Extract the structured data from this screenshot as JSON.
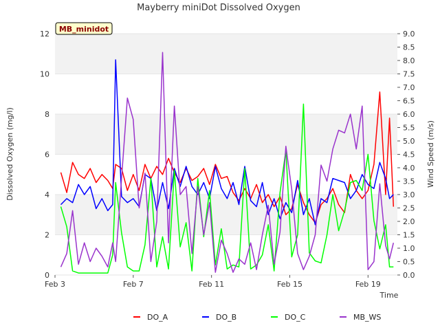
{
  "chart_data": {
    "type": "line",
    "title": "Mayberry miniDot Dissolved Oxygen",
    "badge": "MB_minidot",
    "xlabel": "Time",
    "ylabel": "Dissolved Oxygen (mg/l)",
    "y2label": "Wind Speed (m/s)",
    "x_ticks": [
      "Feb 3",
      "Feb 7",
      "Feb 11",
      "Feb 15",
      "Feb 19"
    ],
    "y_ticks": [
      "0",
      "2",
      "4",
      "6",
      "8",
      "10",
      "12"
    ],
    "y2_ticks": [
      "0.0",
      "0.5",
      "1.0",
      "1.5",
      "2.0",
      "2.5",
      "3.0",
      "3.5",
      "4.0",
      "4.5",
      "5.0",
      "5.5",
      "6.0",
      "6.5",
      "7.0",
      "7.5",
      "8.0",
      "8.5",
      "9.0"
    ],
    "xlim_days": [
      0,
      17.5
    ],
    "ylim": [
      0,
      12
    ],
    "y2lim": [
      0,
      9
    ],
    "bands": [
      [
        2,
        4
      ],
      [
        6,
        8
      ],
      [
        10,
        12
      ]
    ],
    "band_color": "#f2f2f2",
    "legend_position": "bottom",
    "series": [
      {
        "name": "DO_A",
        "color": "#ff0000",
        "axis": "left",
        "x": [
          3.3,
          3.6,
          3.9,
          4.2,
          4.5,
          4.8,
          5.1,
          5.4,
          5.7,
          5.95,
          6.1,
          6.4,
          6.7,
          7.0,
          7.3,
          7.6,
          7.9,
          8.2,
          8.5,
          8.8,
          9.1,
          9.4,
          9.7,
          10.0,
          10.3,
          10.6,
          10.9,
          11.2,
          11.5,
          11.8,
          12.1,
          12.4,
          12.7,
          13.0,
          13.3,
          13.6,
          13.9,
          14.2,
          14.5,
          14.8,
          15.1,
          15.4,
          15.7,
          16.0,
          16.3,
          16.6,
          16.9,
          17.2,
          17.5,
          17.8,
          18.1,
          18.4,
          18.7,
          19.0,
          19.3,
          19.6,
          19.9,
          20.1,
          20.3
        ],
        "y": [
          5.1,
          4.1,
          5.6,
          5.0,
          4.8,
          5.3,
          4.6,
          5.0,
          4.7,
          4.3,
          5.5,
          5.3,
          4.2,
          5.0,
          4.2,
          5.5,
          4.8,
          5.4,
          5.0,
          5.8,
          5.1,
          4.6,
          5.3,
          4.7,
          4.9,
          5.3,
          4.5,
          5.5,
          4.8,
          4.9,
          4.1,
          3.7,
          4.3,
          3.8,
          4.5,
          3.6,
          4.0,
          3.4,
          3.9,
          3.0,
          3.3,
          4.5,
          3.6,
          3.0,
          2.6,
          3.5,
          3.8,
          4.3,
          3.5,
          3.1,
          5.0,
          4.2,
          3.8,
          4.2,
          5.5,
          9.1,
          4.0,
          7.8,
          3.4
        ]
      },
      {
        "name": "DO_B",
        "color": "#0000ff",
        "axis": "left",
        "x": [
          3.3,
          3.6,
          3.9,
          4.2,
          4.5,
          4.8,
          5.1,
          5.4,
          5.7,
          5.95,
          6.1,
          6.4,
          6.7,
          7.0,
          7.3,
          7.6,
          7.9,
          8.2,
          8.5,
          8.8,
          9.1,
          9.4,
          9.7,
          10.0,
          10.3,
          10.6,
          10.9,
          11.2,
          11.5,
          11.8,
          12.1,
          12.4,
          12.7,
          13.0,
          13.3,
          13.6,
          13.9,
          14.2,
          14.5,
          14.8,
          15.1,
          15.4,
          15.7,
          16.0,
          16.3,
          16.6,
          16.9,
          17.2,
          17.5,
          17.8,
          18.1,
          18.4,
          18.7,
          19.0,
          19.3,
          19.6,
          19.9,
          20.1,
          20.3
        ],
        "y": [
          3.5,
          3.8,
          3.6,
          4.5,
          4.0,
          4.4,
          3.3,
          3.8,
          3.2,
          3.5,
          10.7,
          3.9,
          3.6,
          3.8,
          3.4,
          5.0,
          4.8,
          3.2,
          4.6,
          3.3,
          5.3,
          4.4,
          5.4,
          4.4,
          4.0,
          4.6,
          3.8,
          5.4,
          4.3,
          3.8,
          4.6,
          3.5,
          5.4,
          3.7,
          3.4,
          4.6,
          3.0,
          3.8,
          2.8,
          3.6,
          3.1,
          4.7,
          3.0,
          3.8,
          2.5,
          3.8,
          3.6,
          4.8,
          4.7,
          4.6,
          3.8,
          4.2,
          5.0,
          4.5,
          4.3,
          5.6,
          4.8,
          3.8,
          4.0
        ]
      },
      {
        "name": "DO_C",
        "color": "#00ff00",
        "axis": "left",
        "x": [
          3.3,
          3.6,
          3.9,
          4.2,
          4.5,
          4.8,
          5.1,
          5.4,
          5.7,
          5.95,
          6.1,
          6.4,
          6.7,
          7.0,
          7.3,
          7.6,
          7.9,
          8.2,
          8.5,
          8.8,
          9.1,
          9.4,
          9.7,
          10.0,
          10.3,
          10.6,
          10.9,
          11.2,
          11.5,
          11.8,
          12.1,
          12.4,
          12.7,
          13.0,
          13.3,
          13.6,
          13.9,
          14.2,
          14.5,
          14.8,
          15.1,
          15.4,
          15.7,
          16.0,
          16.3,
          16.6,
          16.9,
          17.2,
          17.5,
          17.8,
          18.1,
          18.4,
          18.7,
          19.0,
          19.3,
          19.6,
          19.9,
          20.1,
          20.3
        ],
        "y": [
          3.4,
          2.4,
          0.2,
          0.1,
          0.1,
          0.1,
          0.1,
          0.1,
          0.1,
          1.0,
          4.6,
          2.1,
          0.4,
          0.2,
          0.2,
          1.5,
          4.8,
          0.4,
          1.9,
          0.3,
          5.2,
          1.4,
          2.6,
          0.2,
          4.8,
          1.9,
          4.2,
          0.5,
          2.3,
          0.3,
          0.5,
          0.4,
          5.3,
          0.3,
          0.5,
          1.0,
          2.5,
          0.2,
          4.1,
          6.2,
          0.9,
          2.0,
          8.5,
          1.1,
          0.7,
          0.6,
          2.0,
          4.0,
          2.2,
          3.2,
          4.6,
          4.7,
          4.2,
          6.0,
          2.7,
          1.3,
          2.5,
          0.4,
          0.4
        ]
      },
      {
        "name": "MB_WS",
        "color": "#9933cc",
        "axis": "right",
        "x": [
          3.3,
          3.6,
          3.9,
          4.2,
          4.5,
          4.8,
          5.1,
          5.4,
          5.7,
          5.95,
          6.1,
          6.4,
          6.7,
          7.0,
          7.3,
          7.6,
          7.9,
          8.2,
          8.5,
          8.8,
          9.1,
          9.4,
          9.7,
          10.0,
          10.3,
          10.6,
          10.9,
          11.2,
          11.5,
          11.8,
          12.1,
          12.4,
          12.7,
          13.0,
          13.3,
          13.6,
          13.9,
          14.2,
          14.5,
          14.8,
          15.1,
          15.4,
          15.7,
          16.0,
          16.3,
          16.6,
          16.9,
          17.2,
          17.5,
          17.8,
          18.1,
          18.4,
          18.7,
          19.0,
          19.3,
          19.6,
          19.9,
          20.1,
          20.3
        ],
        "y": [
          0.3,
          0.8,
          2.4,
          0.4,
          1.2,
          0.5,
          1.0,
          0.7,
          0.3,
          1.2,
          0.5,
          3.6,
          6.6,
          5.8,
          2.5,
          3.8,
          0.5,
          2.0,
          8.3,
          1.2,
          6.3,
          3.0,
          3.3,
          0.8,
          3.3,
          1.5,
          2.7,
          0.1,
          1.3,
          0.8,
          0.1,
          0.6,
          0.4,
          1.2,
          0.2,
          1.5,
          2.6,
          0.4,
          1.6,
          4.8,
          3.2,
          0.8,
          0.2,
          0.7,
          1.5,
          4.1,
          3.5,
          4.7,
          5.4,
          5.3,
          6.0,
          4.7,
          6.3,
          0.2,
          0.5,
          3.4,
          1.1,
          0.6,
          1.2
        ]
      }
    ]
  }
}
